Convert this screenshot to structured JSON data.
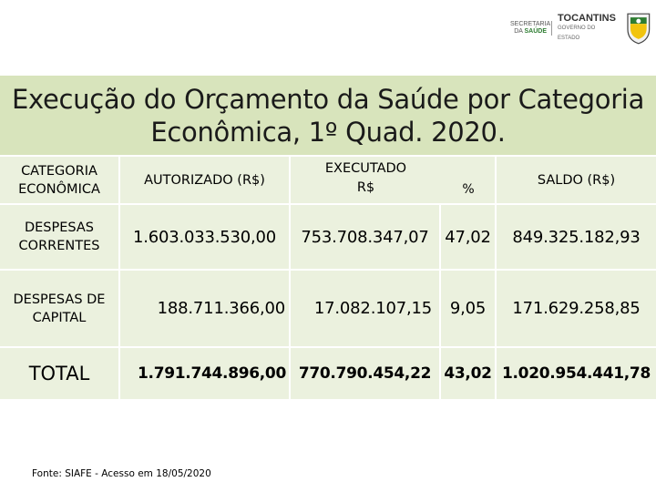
{
  "logo": {
    "secretaria_line1": "SECRETARIA",
    "secretaria_line2": "DA",
    "secretaria_line3": "SAÚDE",
    "tocantins": "TOCANTINS",
    "governo": "GOVERNO DO ESTADO"
  },
  "title": "Execução do Orçamento da Saúde por Categoria Econômica, 1º Quad. 2020.",
  "table": {
    "headers": {
      "categoria": "CATEGORIA ECONÔMICA",
      "autorizado": "AUTORIZADO (R$)",
      "executado": "EXECUTADO",
      "executado_rs": "R$",
      "percent": "%",
      "saldo": "SALDO (R$)"
    },
    "rows": [
      {
        "categoria": "DESPESAS CORRENTES",
        "autorizado": "1.603.033.530,00",
        "executado_rs": "753.708.347,07",
        "percent": "47,02",
        "saldo": "849.325.182,93"
      },
      {
        "categoria": "DESPESAS DE CAPITAL",
        "autorizado": "188.711.366,00",
        "executado_rs": "17.082.107,15",
        "percent": "9,05",
        "saldo": "171.629.258,85"
      },
      {
        "categoria": "TOTAL",
        "autorizado": "1.791.744.896,00",
        "executado_rs": "770.790.454,22",
        "percent": "43,02",
        "saldo": "1.020.954.441,78"
      }
    ]
  },
  "source": "Fonte: SIAFE - Acesso em 18/05/2020",
  "colors": {
    "title_band": "#d8e4bc",
    "cell_fill": "#ebf1de",
    "brand_green": "#2e7d32"
  }
}
